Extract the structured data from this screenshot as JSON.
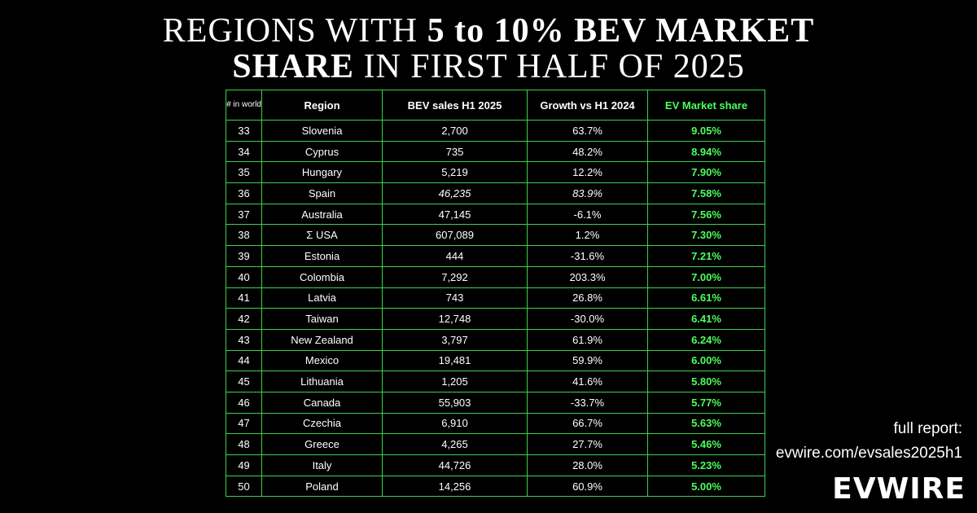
{
  "title": {
    "line1_a": "REGIONS WITH ",
    "line1_b": "5 to 10% BEV MARKET",
    "line2_a": "SHARE",
    "line2_b": " IN FIRST HALF OF 2025"
  },
  "table": {
    "headers": {
      "rank": "# in world",
      "region": "Region",
      "sales": "BEV sales H1 2025",
      "growth": "Growth vs H1 2024",
      "share": "EV Market share"
    },
    "rows": [
      {
        "rank": "33",
        "region": "Slovenia",
        "sales": "2,700",
        "growth": "63.7%",
        "share": "9.05%"
      },
      {
        "rank": "34",
        "region": "Cyprus",
        "sales": "735",
        "growth": "48.2%",
        "share": "8.94%"
      },
      {
        "rank": "35",
        "region": "Hungary",
        "sales": "5,219",
        "growth": "12.2%",
        "share": "7.90%"
      },
      {
        "rank": "36",
        "region": "Spain",
        "sales": "46,235",
        "growth": "83.9%",
        "share": "7.58%"
      },
      {
        "rank": "37",
        "region": "Australia",
        "sales": "47,145",
        "growth": "-6.1%",
        "share": "7.56%"
      },
      {
        "rank": "38",
        "region": "Σ USA",
        "sales": "607,089",
        "growth": "1.2%",
        "share": "7.30%"
      },
      {
        "rank": "39",
        "region": "Estonia",
        "sales": "444",
        "growth": "-31.6%",
        "share": "7.21%"
      },
      {
        "rank": "40",
        "region": "Colombia",
        "sales": "7,292",
        "growth": "203.3%",
        "share": "7.00%"
      },
      {
        "rank": "41",
        "region": "Latvia",
        "sales": "743",
        "growth": "26.8%",
        "share": "6.61%"
      },
      {
        "rank": "42",
        "region": "Taiwan",
        "sales": "12,748",
        "growth": "-30.0%",
        "share": "6.41%"
      },
      {
        "rank": "43",
        "region": "New Zealand",
        "sales": "3,797",
        "growth": "61.9%",
        "share": "6.24%"
      },
      {
        "rank": "44",
        "region": "Mexico",
        "sales": "19,481",
        "growth": "59.9%",
        "share": "6.00%"
      },
      {
        "rank": "45",
        "region": "Lithuania",
        "sales": "1,205",
        "growth": "41.6%",
        "share": "5.80%"
      },
      {
        "rank": "46",
        "region": "Canada",
        "sales": "55,903",
        "growth": "-33.7%",
        "share": "5.77%"
      },
      {
        "rank": "47",
        "region": "Czechia",
        "sales": "6,910",
        "growth": "66.7%",
        "share": "5.63%"
      },
      {
        "rank": "48",
        "region": "Greece",
        "sales": "4,265",
        "growth": "27.7%",
        "share": "5.46%"
      },
      {
        "rank": "49",
        "region": "Italy",
        "sales": "44,726",
        "growth": "28.0%",
        "share": "5.23%"
      },
      {
        "rank": "50",
        "region": "Poland",
        "sales": "14,256",
        "growth": "60.9%",
        "share": "5.00%"
      }
    ]
  },
  "report": {
    "label": "full report:",
    "url": "evwire.com/evsales2025h1"
  },
  "logo": "EVWIRE",
  "colors": {
    "background": "#000000",
    "border": "#3fcf4f",
    "accent": "#4cff5c",
    "text": "#ffffff"
  }
}
